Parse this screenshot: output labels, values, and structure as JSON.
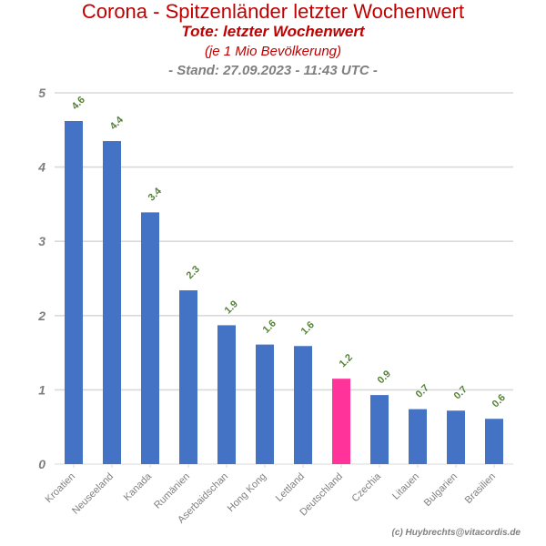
{
  "header": {
    "title": "Corona - Spitzenländer letzter Wochenwert",
    "subtitle": "Tote: letzter Wochenwert",
    "unit_note": "(je 1 Mio Bevölkerung)",
    "stand": "- Stand: 27.09.2023 - 11:43 UTC -"
  },
  "footer": {
    "credit": "(c) Huybrechts@vitacordis.de"
  },
  "colors": {
    "bar": "#4472c4",
    "highlight": "#ff3399",
    "label": "#548235",
    "grid": "#d9d9d9",
    "axis_text": "#7f7f7f"
  },
  "chart_data": {
    "type": "bar",
    "categories": [
      "Kroatien",
      "Neuseeland",
      "Kanada",
      "Rumänien",
      "Aserbaidschan",
      "Hong Kong",
      "Lettland",
      "Deutschland",
      "Czechia",
      "Litauen",
      "Bulgarien",
      "Brasilien"
    ],
    "values": [
      4.62,
      4.35,
      3.39,
      2.34,
      1.87,
      1.61,
      1.59,
      1.15,
      0.93,
      0.74,
      0.72,
      0.61
    ],
    "data_labels": [
      "4.6",
      "4.4",
      "3.4",
      "2.3",
      "1.9",
      "1.6",
      "1.6",
      "1.2",
      "0.9",
      "0.7",
      "0.7",
      "0.6"
    ],
    "highlight_category": "Deutschland",
    "ylim": [
      0,
      5
    ],
    "yticks": [
      0,
      1,
      2,
      3,
      4,
      5
    ],
    "grid": true,
    "legend": "none"
  }
}
